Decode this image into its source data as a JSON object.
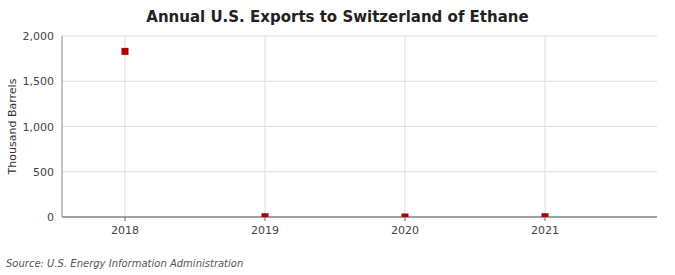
{
  "chart_data": {
    "type": "scatter",
    "title": "Annual U.S. Exports to Switzerland of Ethane",
    "ylabel": "Thousand Barrels",
    "source": "Source: U.S. Energy Information Administration",
    "x": [
      2018,
      2019,
      2020,
      2021
    ],
    "values": [
      1830,
      3,
      0,
      3
    ],
    "color": "#aa0000",
    "marker": "square",
    "xlim": [
      2017.55,
      2021.8
    ],
    "xticks": [
      2018,
      2019,
      2020,
      2021
    ],
    "ylim": [
      0,
      2000
    ],
    "yticks": [
      0,
      500,
      {
        "value": 1000,
        "label": "1,000"
      },
      {
        "value": 1500,
        "label": "1,500"
      },
      {
        "value": 2000,
        "label": "2,000"
      }
    ],
    "grid": true
  }
}
